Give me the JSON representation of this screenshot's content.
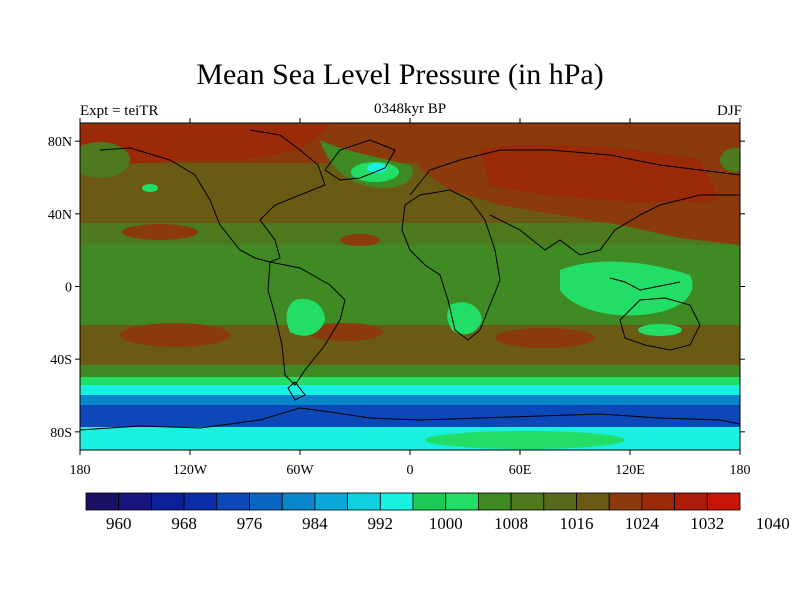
{
  "title": "Mean Sea Level Pressure (in hPa)",
  "subtitle_left": "Expt = teiTR",
  "subtitle_center": "0348kyr BP",
  "subtitle_right": "DJF",
  "x_ticks": [
    "180",
    "120W",
    "60W",
    "0",
    "60E",
    "120E",
    "180"
  ],
  "y_ticks": [
    "80N",
    "40N",
    "0",
    "40S",
    "80S"
  ],
  "colorbar": {
    "labels": [
      "960",
      "968",
      "976",
      "984",
      "992",
      "1000",
      "1008",
      "1016",
      "1024",
      "1032",
      "1040"
    ],
    "colors": [
      "#1a1066",
      "#17147e",
      "#0d1f99",
      "#0a2ea8",
      "#0c48b8",
      "#0a66c2",
      "#0a86cc",
      "#0aa8d8",
      "#10d0e0",
      "#18f0e0",
      "#1acc55",
      "#22dd66",
      "#3f8a22",
      "#4c7a1c",
      "#57691a",
      "#6b5a14",
      "#8a3a0c",
      "#9a2a08",
      "#ad1c08",
      "#c8150a"
    ]
  },
  "map_layers": [
    {
      "name": "antarctic-low-band",
      "color": "#0c48b8"
    },
    {
      "name": "subpolar-low-band",
      "color": "#0a86cc"
    },
    {
      "name": "southern-ocean-band",
      "color": "#10d0e0"
    },
    {
      "name": "tropics-band",
      "color": "#3f8a22"
    },
    {
      "name": "subtropical-high-band",
      "color": "#6b5a14"
    },
    {
      "name": "siberian-high",
      "color": "#8a3a0c"
    }
  ]
}
